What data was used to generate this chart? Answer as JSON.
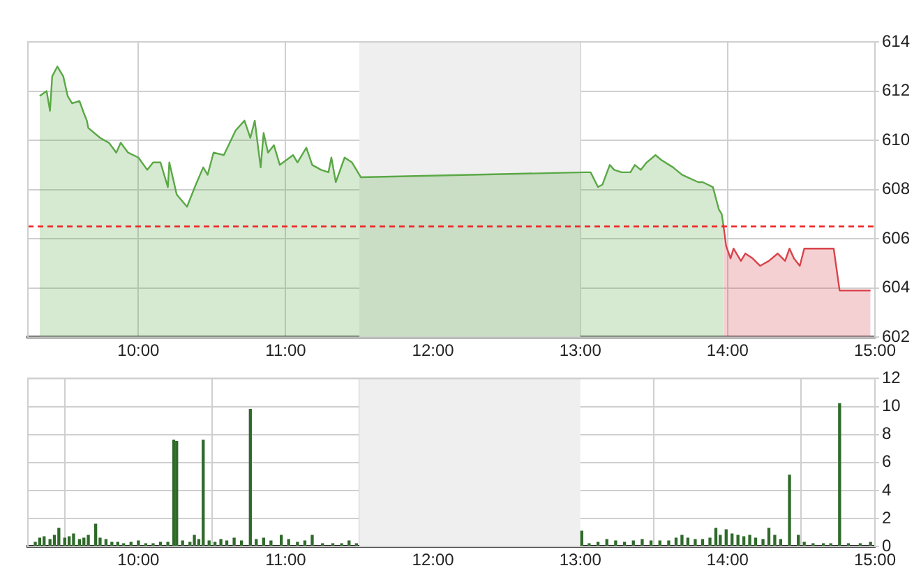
{
  "chart_data": [
    {
      "type": "area",
      "series": [
        {
          "color": "#5aa846",
          "x": [
            9.33,
            9.377,
            9.4,
            9.415,
            9.45,
            9.49,
            9.52,
            9.55,
            9.6,
            9.63,
            9.65,
            9.66,
            9.74,
            9.8,
            9.85,
            9.88,
            9.93,
            10.0,
            10.06,
            10.1,
            10.15,
            10.2,
            10.21,
            10.26,
            10.33,
            10.39,
            10.44,
            10.47,
            10.51,
            10.58,
            10.66,
            10.72,
            10.76,
            10.79,
            10.83,
            10.85,
            10.88,
            10.92,
            10.96,
            11.05,
            11.08,
            11.14,
            11.18,
            11.24,
            11.29,
            11.31,
            11.34,
            11.4,
            11.45,
            11.51,
            13.03,
            13.07,
            13.12,
            13.15,
            13.2,
            13.23,
            13.28,
            13.34,
            13.37,
            13.41,
            13.45,
            13.51,
            13.55,
            13.63,
            13.69,
            13.8,
            13.83,
            13.9,
            13.94,
            13.96,
            13.97
          ],
          "values": [
            611.8,
            612.0,
            611.2,
            612.6,
            613.0,
            612.6,
            611.8,
            611.5,
            611.6,
            611.1,
            610.8,
            610.5,
            610.1,
            609.9,
            609.5,
            609.9,
            609.5,
            609.3,
            608.8,
            609.1,
            609.1,
            608.1,
            609.1,
            607.8,
            607.3,
            608.2,
            608.9,
            608.6,
            609.5,
            609.4,
            610.4,
            610.8,
            610.1,
            610.8,
            608.9,
            610.3,
            609.5,
            609.8,
            609.0,
            609.4,
            609.1,
            609.7,
            609.0,
            608.8,
            608.7,
            609.3,
            608.3,
            609.3,
            609.1,
            608.5,
            608.7,
            608.7,
            608.1,
            608.2,
            609.0,
            608.8,
            608.7,
            608.7,
            609.0,
            608.8,
            609.1,
            609.4,
            609.2,
            608.9,
            608.6,
            608.3,
            608.3,
            608.1,
            607.2,
            607.0,
            606.6
          ]
        },
        {
          "color": "#d9434b",
          "x": [
            13.97,
            13.99,
            14.02,
            14.04,
            14.09,
            14.12,
            14.17,
            14.22,
            14.28,
            14.34,
            14.39,
            14.42,
            14.45,
            14.49,
            14.52,
            14.72,
            14.76,
            14.97
          ],
          "values": [
            606.6,
            605.7,
            605.2,
            605.6,
            605.1,
            605.4,
            605.2,
            604.9,
            605.1,
            605.4,
            605.1,
            605.6,
            605.2,
            604.9,
            605.6,
            605.6,
            603.9,
            603.9
          ]
        }
      ],
      "xlim": [
        9.25,
        15
      ],
      "xticks": [
        {
          "value": 10,
          "label": "10:00"
        },
        {
          "value": 11,
          "label": "11:00"
        },
        {
          "value": 12,
          "label": "12:00"
        },
        {
          "value": 13,
          "label": "13:00"
        },
        {
          "value": 14,
          "label": "14:00"
        },
        {
          "value": 15,
          "label": "15:00"
        }
      ],
      "ylim": [
        602,
        614
      ],
      "yticks": [
        602,
        604,
        606,
        608,
        610,
        612,
        614
      ],
      "ref_lines": [
        {
          "axis": "y",
          "value": 606.5,
          "color": "#ee2222",
          "line_style": "dashed"
        }
      ],
      "bands": [
        {
          "axis": "x",
          "from": 11.5,
          "to": 13,
          "color": "#efefef"
        }
      ],
      "grid": true,
      "legend": false
    },
    {
      "type": "bar",
      "color": "#2f6a2a",
      "x": [
        9.3,
        9.33,
        9.36,
        9.4,
        9.43,
        9.46,
        9.5,
        9.53,
        9.56,
        9.6,
        9.63,
        9.66,
        9.71,
        9.74,
        9.78,
        9.82,
        9.86,
        9.9,
        9.95,
        10.0,
        10.05,
        10.1,
        10.15,
        10.2,
        10.24,
        10.26,
        10.3,
        10.35,
        10.38,
        10.41,
        10.44,
        10.48,
        10.52,
        10.56,
        10.6,
        10.65,
        10.7,
        10.76,
        10.8,
        10.85,
        10.9,
        10.97,
        11.02,
        11.08,
        11.13,
        11.18,
        11.25,
        11.32,
        11.38,
        11.43,
        11.48,
        13.01,
        13.06,
        13.12,
        13.18,
        13.24,
        13.3,
        13.36,
        13.42,
        13.48,
        13.54,
        13.6,
        13.65,
        13.69,
        13.73,
        13.78,
        13.83,
        13.88,
        13.92,
        13.95,
        13.99,
        14.03,
        14.07,
        14.11,
        14.15,
        14.19,
        14.24,
        14.28,
        14.32,
        14.36,
        14.42,
        14.48,
        14.52,
        14.58,
        14.65,
        14.7,
        14.76,
        14.82,
        14.9,
        14.97
      ],
      "values": [
        0.3,
        0.6,
        0.7,
        0.5,
        0.8,
        1.3,
        0.6,
        0.7,
        0.9,
        0.5,
        0.6,
        0.8,
        1.6,
        0.6,
        0.5,
        0.3,
        0.3,
        0.2,
        0.3,
        0.4,
        0.2,
        0.2,
        0.3,
        0.3,
        7.6,
        7.5,
        0.4,
        0.3,
        0.8,
        0.5,
        7.6,
        0.4,
        0.3,
        0.5,
        0.4,
        0.6,
        0.4,
        9.8,
        0.5,
        0.6,
        0.4,
        0.8,
        0.5,
        0.3,
        0.4,
        0.8,
        0.2,
        0.2,
        0.2,
        0.4,
        0.2,
        1.1,
        0.2,
        0.3,
        0.5,
        0.4,
        0.3,
        0.4,
        0.5,
        0.4,
        0.4,
        0.4,
        0.6,
        0.8,
        0.6,
        0.5,
        0.5,
        0.6,
        1.3,
        0.8,
        1.2,
        0.9,
        0.8,
        0.7,
        0.8,
        0.6,
        0.5,
        1.3,
        0.8,
        0.5,
        5.1,
        0.8,
        0.3,
        0.2,
        0.2,
        0.2,
        10.2,
        0.2,
        0.2,
        0.3
      ],
      "xlim": [
        9.25,
        15
      ],
      "xticks": [
        {
          "value": 10,
          "label": "10:00"
        },
        {
          "value": 11,
          "label": "11:00"
        },
        {
          "value": 12,
          "label": "12:00"
        },
        {
          "value": 13,
          "label": "13:00"
        },
        {
          "value": 14,
          "label": "14:00"
        },
        {
          "value": 15,
          "label": "15:00"
        }
      ],
      "ylim": [
        0,
        12
      ],
      "yticks": [
        0,
        2,
        4,
        6,
        8,
        10,
        12
      ],
      "bands": [
        {
          "axis": "x",
          "from": 11.5,
          "to": 13,
          "color": "#efefef"
        }
      ],
      "grid": true,
      "legend": false
    }
  ]
}
